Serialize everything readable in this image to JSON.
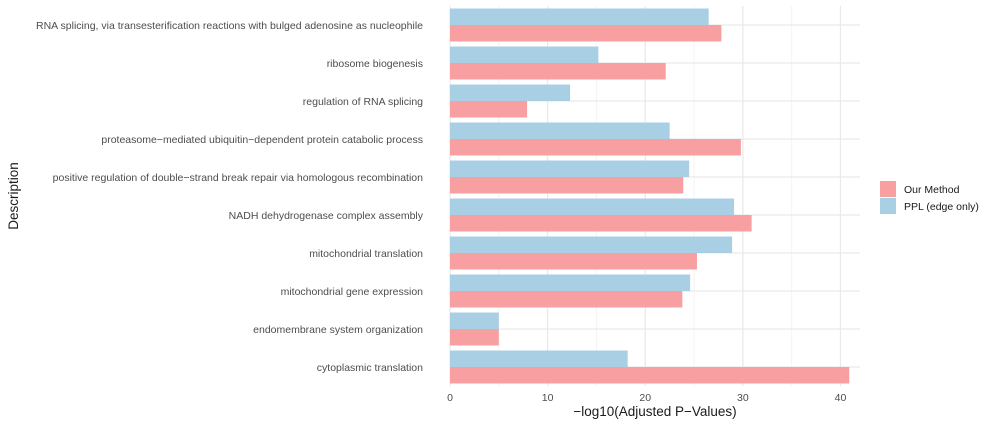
{
  "chart_data": {
    "type": "bar",
    "orientation": "horizontal",
    "title": "",
    "xlabel": "−log10(Adjusted P−Values)",
    "ylabel": "Description",
    "xlim": [
      0,
      42
    ],
    "xticks": [
      0,
      10,
      20,
      30,
      40
    ],
    "xtick_labels": [
      "0",
      "10",
      "20",
      "30",
      "40"
    ],
    "grid": true,
    "legend_position": "right",
    "categories": [
      "RNA splicing, via transesterification reactions with bulged adenosine as nucleophile",
      "ribosome biogenesis",
      "regulation of RNA splicing",
      "proteasome−mediated ubiquitin−dependent protein catabolic process",
      "positive regulation of double−strand break repair via homologous recombination",
      "NADH dehydrogenase complex assembly",
      "mitochondrial translation",
      "mitochondrial gene expression",
      "endomembrane system organization",
      "cytoplasmic translation"
    ],
    "series": [
      {
        "name": "Our Method",
        "color": "#F8A0A1",
        "values": [
          27.8,
          22.1,
          7.9,
          29.8,
          23.9,
          30.9,
          25.3,
          23.8,
          5.0,
          40.9
        ]
      },
      {
        "name": "PPL (edge only)",
        "color": "#A9CFE5",
        "values": [
          26.5,
          15.2,
          12.3,
          22.5,
          24.5,
          29.1,
          28.9,
          24.6,
          5.0,
          18.2
        ]
      }
    ]
  }
}
